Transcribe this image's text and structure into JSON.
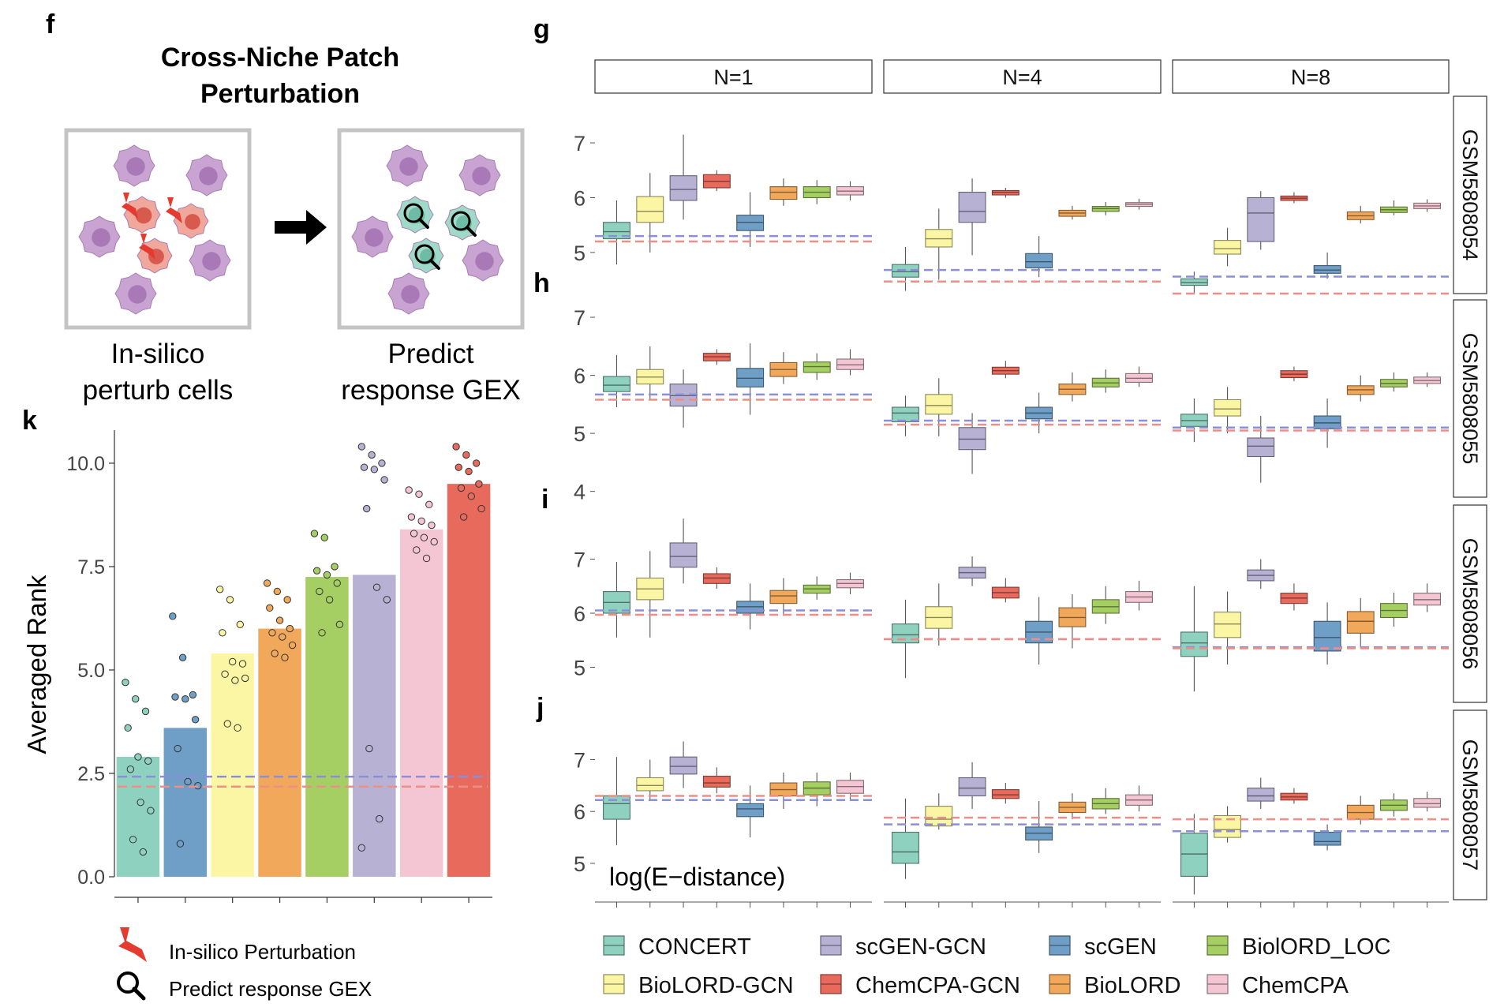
{
  "panel_letters": {
    "f": "f",
    "g": "g",
    "h": "h",
    "i": "i",
    "j": "j",
    "k": "k"
  },
  "panel_f": {
    "title_line1": "Cross-Niche Patch",
    "title_line2": "Perturbation",
    "left_caption_line1": "In-silico",
    "left_caption_line2": "perturb cells",
    "right_caption_line1": "Predict",
    "right_caption_line2": "response GEX"
  },
  "legend_icons": {
    "perturbation_label": "In-silico Perturbation",
    "predict_label": "Predict response GEX"
  },
  "colors": {
    "CONCERT": "#8fd1bf",
    "BioLORD-GCN": "#fbf6a4",
    "scGEN-GCN": "#b7b1d4",
    "ChemCPA-GCN": "#e86a5c",
    "scGEN": "#6f9fc6",
    "BioLORD": "#f1a85a",
    "BiolORD_LOC": "#a5cf63",
    "ChemCPA": "#f4c6d4",
    "ref_blue": "#8c8fd8",
    "ref_red": "#ef8e86"
  },
  "methods": [
    "CONCERT",
    "BioLORD-GCN",
    "scGEN-GCN",
    "ChemCPA-GCN",
    "scGEN",
    "BioLORD",
    "BiolORD_LOC",
    "ChemCPA"
  ],
  "legend": {
    "items": [
      "CONCERT",
      "scGEN-GCN",
      "scGEN",
      "BiolORD_LOC",
      "BioLORD-GCN",
      "ChemCPA-GCN",
      "BioLORD",
      "ChemCPA"
    ]
  },
  "chart_data": [
    {
      "id": "k",
      "type": "bar",
      "ylabel": "Averaged Rank",
      "ylim": [
        0,
        10.8
      ],
      "yticks": [
        "0.0",
        "2.5",
        "5.0",
        "7.5",
        "10.0"
      ],
      "categories": [
        "CONCERT",
        "scGEN",
        "BioLORD-GCN",
        "BioLORD",
        "BiolORD_LOC",
        "scGEN-GCN",
        "ChemCPA",
        "ChemCPA-GCN"
      ],
      "values": [
        2.9,
        3.6,
        5.4,
        6.0,
        7.25,
        7.3,
        8.4,
        9.5
      ],
      "points": [
        [
          4.7,
          4.3,
          4.0,
          3.6,
          2.9,
          2.8,
          2.6,
          1.8,
          1.6,
          0.9,
          0.6
        ],
        [
          6.3,
          5.3,
          4.4,
          4.35,
          4.3,
          3.8,
          3.1,
          2.3,
          2.2,
          0.8
        ],
        [
          6.95,
          6.7,
          6.1,
          5.9,
          5.2,
          5.15,
          4.9,
          4.75,
          4.8,
          3.7,
          3.6
        ],
        [
          7.1,
          6.9,
          6.7,
          6.5,
          6.2,
          6.0,
          5.9,
          5.8,
          5.6,
          5.4,
          5.3
        ],
        [
          8.3,
          8.2,
          7.5,
          7.4,
          7.3,
          7.1,
          6.9,
          6.7,
          6.1,
          5.9
        ],
        [
          10.4,
          10.2,
          10.0,
          9.9,
          9.85,
          9.6,
          8.9,
          7.0,
          6.7,
          3.1,
          1.4,
          0.7
        ],
        [
          9.35,
          9.25,
          9.0,
          8.7,
          8.6,
          8.5,
          8.3,
          8.2,
          8.1,
          7.9,
          7.7
        ],
        [
          10.4,
          10.2,
          10.0,
          9.9,
          9.8,
          9.5,
          9.4,
          9.2,
          8.9,
          8.7
        ]
      ],
      "ref_blue": 2.42,
      "ref_red": 2.18
    },
    {
      "id": "gj",
      "type": "box",
      "yaxis_annotation": "log(E−distance)",
      "facets": [
        "N=1",
        "N=4",
        "N=8"
      ],
      "rows": [
        {
          "label": "GSM5808054",
          "ylim": [
            4.25,
            7.85
          ],
          "yticks": [
            5,
            6,
            7
          ],
          "ref": [
            [
              5.3,
              5.2
            ],
            [
              4.68,
              4.47
            ],
            [
              4.56,
              4.25
            ]
          ],
          "boxes": [
            [
              [
                4.78,
                5.25,
                5.38,
                5.55,
                5.95
              ],
              [
                5.0,
                5.55,
                5.75,
                6.02,
                6.45
              ],
              [
                5.6,
                5.95,
                6.15,
                6.4,
                7.15
              ],
              [
                6.12,
                6.18,
                6.3,
                6.42,
                6.5
              ],
              [
                5.1,
                5.4,
                5.55,
                5.68,
                6.1
              ],
              [
                5.85,
                5.97,
                6.1,
                6.2,
                6.35
              ],
              [
                5.88,
                6.0,
                6.1,
                6.2,
                6.32
              ],
              [
                5.95,
                6.05,
                6.12,
                6.2,
                6.3
              ]
            ],
            [
              [
                4.3,
                4.55,
                4.65,
                4.78,
                5.1
              ],
              [
                4.5,
                5.1,
                5.25,
                5.42,
                5.8
              ],
              [
                4.95,
                5.55,
                5.75,
                6.1,
                6.35
              ],
              [
                6.0,
                6.05,
                6.1,
                6.13,
                6.18
              ],
              [
                4.55,
                4.72,
                4.83,
                4.98,
                5.3
              ],
              [
                5.6,
                5.66,
                5.72,
                5.77,
                5.85
              ],
              [
                5.68,
                5.75,
                5.8,
                5.84,
                5.92
              ],
              [
                5.78,
                5.84,
                5.88,
                5.91,
                5.98
              ]
            ],
            [
              [
                4.25,
                4.4,
                4.45,
                4.52,
                4.65
              ],
              [
                4.75,
                4.97,
                5.07,
                5.22,
                5.45
              ],
              [
                5.05,
                5.2,
                5.72,
                6.0,
                6.12
              ],
              [
                5.9,
                5.95,
                5.99,
                6.03,
                6.1
              ],
              [
                4.52,
                4.62,
                4.68,
                4.76,
                5.0
              ],
              [
                5.53,
                5.6,
                5.67,
                5.74,
                5.85
              ],
              [
                5.68,
                5.73,
                5.78,
                5.83,
                5.95
              ],
              [
                5.74,
                5.8,
                5.85,
                5.9,
                5.97
              ]
            ]
          ]
        },
        {
          "label": "GSM5808055",
          "ylim": [
            3.9,
            7.3
          ],
          "yticks": [
            4,
            5,
            6,
            7
          ],
          "ref": [
            [
              5.67,
              5.58
            ],
            [
              5.22,
              5.15
            ],
            [
              5.1,
              5.05
            ]
          ],
          "boxes": [
            [
              [
                5.45,
                5.72,
                5.83,
                5.98,
                6.35
              ],
              [
                5.58,
                5.85,
                5.97,
                6.1,
                6.5
              ],
              [
                5.1,
                5.47,
                5.65,
                5.85,
                6.1
              ],
              [
                6.18,
                6.25,
                6.32,
                6.38,
                6.45
              ],
              [
                5.32,
                5.8,
                5.95,
                6.12,
                6.55
              ],
              [
                5.85,
                5.98,
                6.1,
                6.22,
                6.4
              ],
              [
                5.92,
                6.05,
                6.15,
                6.23,
                6.38
              ],
              [
                6.0,
                6.1,
                6.18,
                6.28,
                6.45
              ]
            ],
            [
              [
                4.95,
                5.2,
                5.35,
                5.45,
                5.65
              ],
              [
                4.95,
                5.33,
                5.48,
                5.67,
                5.95
              ],
              [
                4.3,
                4.72,
                4.9,
                5.1,
                5.35
              ],
              [
                5.95,
                6.02,
                6.08,
                6.14,
                6.25
              ],
              [
                5.0,
                5.25,
                5.35,
                5.45,
                5.7
              ],
              [
                5.55,
                5.67,
                5.76,
                5.85,
                6.05
              ],
              [
                5.7,
                5.8,
                5.87,
                5.95,
                6.1
              ],
              [
                5.8,
                5.88,
                5.95,
                6.03,
                6.15
              ]
            ],
            [
              [
                4.85,
                5.12,
                5.22,
                5.33,
                5.6
              ],
              [
                5.0,
                5.3,
                5.42,
                5.58,
                5.8
              ],
              [
                4.15,
                4.6,
                4.78,
                4.92,
                5.3
              ],
              [
                5.9,
                5.96,
                6.02,
                6.08,
                6.15
              ],
              [
                4.75,
                5.08,
                5.18,
                5.3,
                5.6
              ],
              [
                5.55,
                5.67,
                5.75,
                5.82,
                6.0
              ],
              [
                5.72,
                5.8,
                5.86,
                5.93,
                6.05
              ],
              [
                5.8,
                5.86,
                5.91,
                5.97,
                6.05
              ]
            ]
          ]
        },
        {
          "label": "GSM5808056",
          "ylim": [
            4.35,
            8.0
          ],
          "yticks": [
            5,
            6,
            7
          ],
          "ref": [
            [
              6.05,
              5.97
            ],
            [
              5.52,
              5.52
            ],
            [
              5.37,
              5.35
            ]
          ],
          "boxes": [
            [
              [
                5.55,
                6.0,
                6.2,
                6.4,
                6.95
              ],
              [
                5.55,
                6.25,
                6.45,
                6.65,
                7.15
              ],
              [
                6.55,
                6.85,
                7.05,
                7.3,
                7.75
              ],
              [
                6.45,
                6.55,
                6.65,
                6.73,
                6.85
              ],
              [
                5.7,
                6.0,
                6.12,
                6.22,
                6.55
              ],
              [
                5.95,
                6.18,
                6.32,
                6.42,
                6.65
              ],
              [
                6.25,
                6.37,
                6.45,
                6.52,
                6.68
              ],
              [
                6.35,
                6.47,
                6.55,
                6.62,
                6.75
              ]
            ],
            [
              [
                4.8,
                5.45,
                5.6,
                5.8,
                6.25
              ],
              [
                5.4,
                5.72,
                5.92,
                6.12,
                6.55
              ],
              [
                6.5,
                6.65,
                6.75,
                6.85,
                7.05
              ],
              [
                6.2,
                6.28,
                6.38,
                6.48,
                6.65
              ],
              [
                5.05,
                5.45,
                5.65,
                5.85,
                6.3
              ],
              [
                5.35,
                5.75,
                5.92,
                6.1,
                6.35
              ],
              [
                5.8,
                6.0,
                6.12,
                6.25,
                6.5
              ],
              [
                6.05,
                6.2,
                6.3,
                6.4,
                6.6
              ]
            ],
            [
              [
                4.55,
                5.2,
                5.45,
                5.65,
                6.5
              ],
              [
                5.05,
                5.55,
                5.8,
                6.02,
                6.4
              ],
              [
                6.45,
                6.6,
                6.7,
                6.8,
                7.0
              ],
              [
                6.05,
                6.18,
                6.28,
                6.37,
                6.55
              ],
              [
                5.05,
                5.3,
                5.55,
                5.85,
                6.2
              ],
              [
                5.35,
                5.63,
                5.85,
                6.03,
                6.28
              ],
              [
                5.75,
                5.92,
                6.05,
                6.18,
                6.38
              ],
              [
                6.02,
                6.15,
                6.25,
                6.37,
                6.55
              ]
            ]
          ]
        },
        {
          "label": "GSM5808057",
          "ylim": [
            4.3,
            7.95
          ],
          "yticks": [
            5,
            6,
            7
          ],
          "ref": [
            [
              6.22,
              6.3
            ],
            [
              5.75,
              5.88
            ],
            [
              5.62,
              5.85
            ]
          ],
          "boxes": [
            [
              [
                5.35,
                5.85,
                6.15,
                6.3,
                7.05
              ],
              [
                6.2,
                6.4,
                6.5,
                6.65,
                7.0
              ],
              [
                6.45,
                6.72,
                6.87,
                7.05,
                7.35
              ],
              [
                6.35,
                6.47,
                6.55,
                6.68,
                6.85
              ],
              [
                5.5,
                5.9,
                6.05,
                6.15,
                6.5
              ],
              [
                6.05,
                6.3,
                6.42,
                6.55,
                6.75
              ],
              [
                6.1,
                6.32,
                6.45,
                6.57,
                6.75
              ],
              [
                6.2,
                6.35,
                6.48,
                6.6,
                6.75
              ]
            ],
            [
              [
                4.7,
                5.0,
                5.22,
                5.6,
                6.25
              ],
              [
                5.65,
                5.72,
                5.85,
                6.1,
                6.35
              ],
              [
                6.05,
                6.3,
                6.45,
                6.65,
                6.95
              ],
              [
                6.15,
                6.25,
                6.32,
                6.42,
                6.55
              ],
              [
                5.2,
                5.45,
                5.58,
                5.7,
                6.2
              ],
              [
                5.85,
                5.98,
                6.08,
                6.18,
                6.35
              ],
              [
                5.95,
                6.05,
                6.15,
                6.25,
                6.45
              ],
              [
                6.0,
                6.12,
                6.22,
                6.32,
                6.5
              ]
            ],
            [
              [
                4.4,
                4.75,
                5.18,
                5.58,
                5.95
              ],
              [
                5.4,
                5.5,
                5.65,
                5.92,
                6.1
              ],
              [
                6.05,
                6.2,
                6.3,
                6.45,
                6.65
              ],
              [
                6.15,
                6.22,
                6.28,
                6.35,
                6.45
              ],
              [
                5.25,
                5.35,
                5.42,
                5.6,
                5.75
              ],
              [
                5.75,
                5.85,
                5.98,
                6.12,
                6.3
              ],
              [
                5.9,
                6.02,
                6.12,
                6.22,
                6.35
              ],
              [
                6.0,
                6.08,
                6.15,
                6.25,
                6.38
              ]
            ]
          ]
        }
      ]
    }
  ]
}
